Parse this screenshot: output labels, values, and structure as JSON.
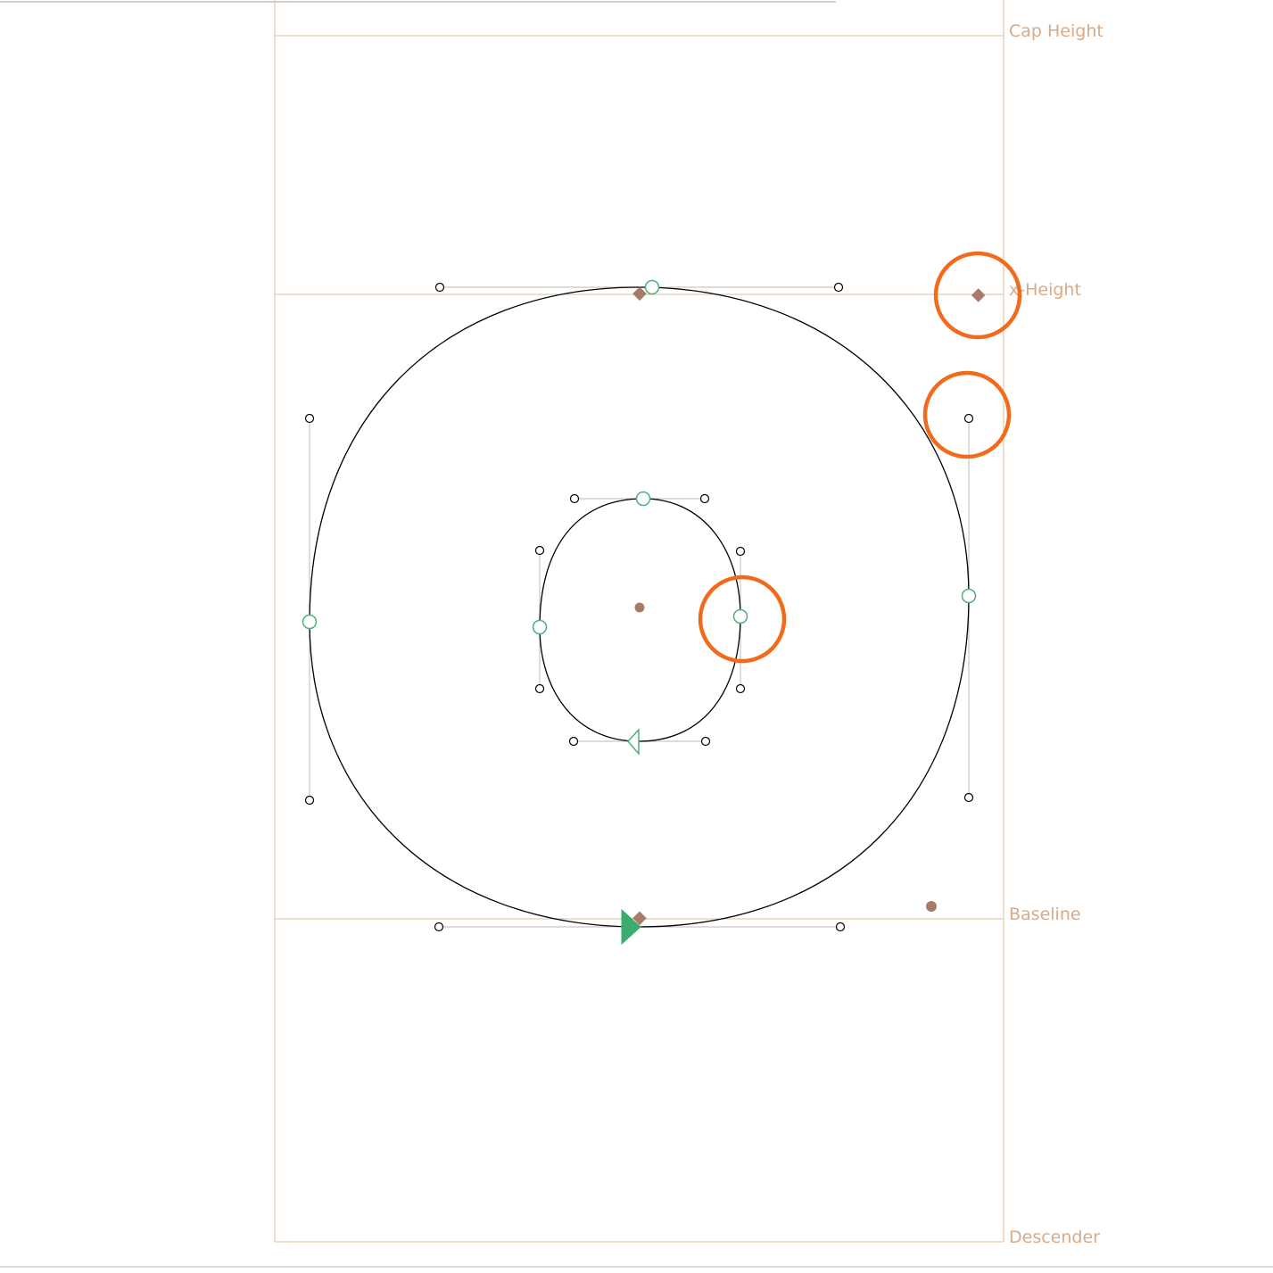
{
  "window": {
    "content": "glyph-editor-canvas"
  },
  "metrics": {
    "cap_height_label": "Cap Height",
    "x_height_label": "x-Height",
    "baseline_label": "Baseline",
    "descender_label": "Descender"
  },
  "colors": {
    "metric_line": "#e2c9b2",
    "metric_text": "#d9aa85",
    "outline": "#000000",
    "handle_line": "#c8c8c8",
    "on_curve_point": "#4fb07a",
    "start_point": "#3bab6e",
    "anchor": "#a77b66",
    "highlight": "#f26b1d"
  }
}
